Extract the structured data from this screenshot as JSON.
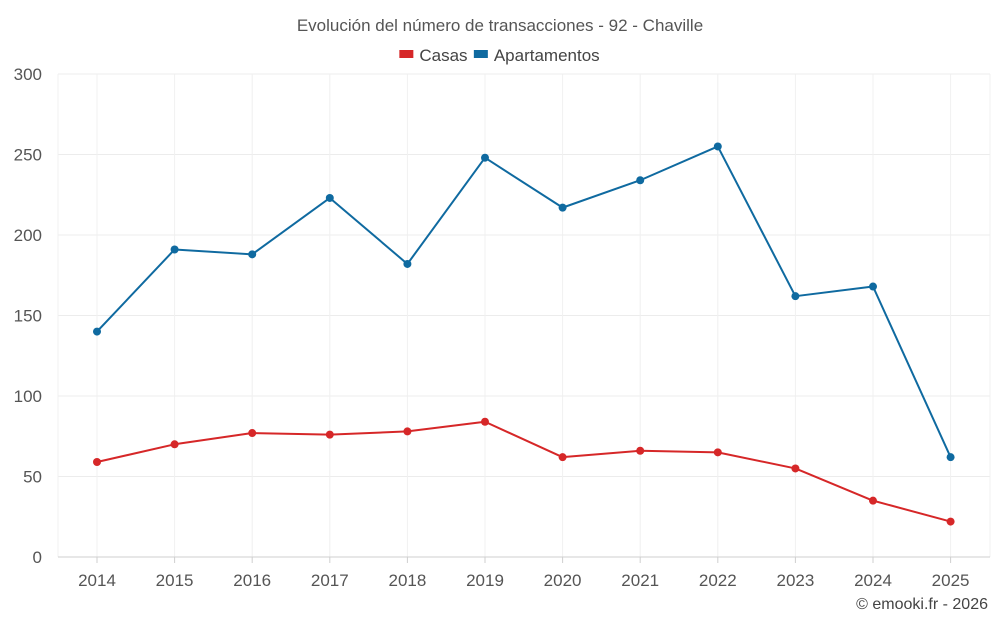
{
  "chart_data": {
    "type": "line",
    "title": "Evolución del número de transacciones - 92 - Chaville",
    "categories": [
      "2014",
      "2015",
      "2016",
      "2017",
      "2018",
      "2019",
      "2020",
      "2021",
      "2022",
      "2023",
      "2024",
      "2025"
    ],
    "series": [
      {
        "name": "Casas",
        "color": "#d62728",
        "values": [
          59,
          70,
          77,
          76,
          78,
          84,
          62,
          66,
          65,
          55,
          35,
          22
        ]
      },
      {
        "name": "Apartamentos",
        "color": "#0f6aa0",
        "values": [
          140,
          191,
          188,
          223,
          182,
          248,
          217,
          234,
          255,
          162,
          168,
          62
        ]
      }
    ],
    "ylim": [
      0,
      300
    ],
    "yticks": [
      0,
      50,
      100,
      150,
      200,
      250,
      300
    ],
    "xlabel": "",
    "ylabel": "",
    "grid": true,
    "legend_position": "top-center"
  },
  "credit": "© emooki.fr - 2026"
}
